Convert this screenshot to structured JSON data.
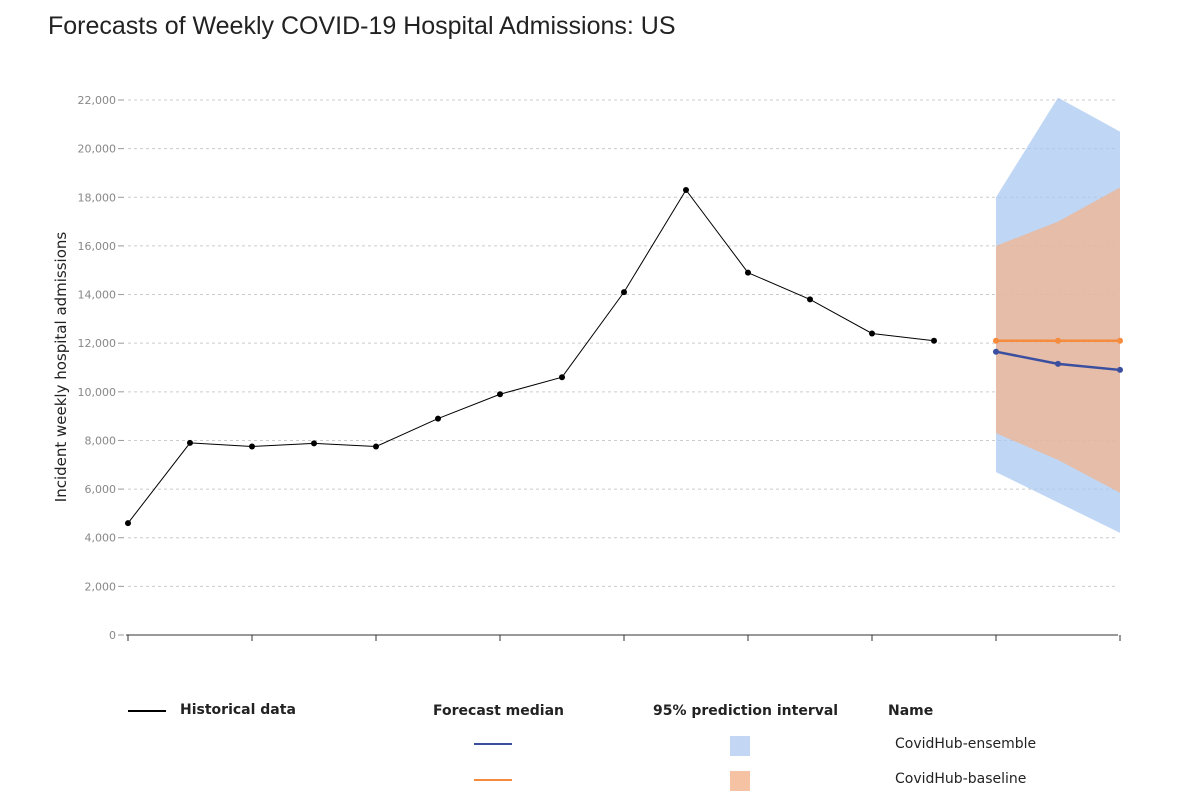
{
  "chart_data": {
    "type": "line",
    "title": "Forecasts of Weekly COVID-19 Hospital Admissions: US",
    "ylabel": "Incident weekly hospital admissions",
    "xlabel": "",
    "ylim": [
      0,
      22000
    ],
    "yticks": [
      0,
      2000,
      4000,
      6000,
      8000,
      10000,
      12000,
      14000,
      16000,
      18000,
      20000,
      22000
    ],
    "grid": true,
    "historical": {
      "name": "Historical data",
      "color": "#000000",
      "values": [
        4600,
        7900,
        7750,
        7880,
        7750,
        8900,
        9900,
        10600,
        14100,
        18300,
        14900,
        13800,
        12400,
        12100
      ]
    },
    "forecasts": [
      {
        "name": "CovidHub-ensemble",
        "median_color": "#3b4fa0",
        "interval_color": "#a9c8f2",
        "median": [
          11650,
          11150,
          10900
        ],
        "lower95": [
          6700,
          5450,
          4200
        ],
        "upper95": [
          18000,
          22100,
          20700
        ]
      },
      {
        "name": "CovidHub-baseline",
        "median_color": "#f58b3c",
        "interval_color": "#f2b48e",
        "median": [
          12100,
          12100,
          12100
        ],
        "lower95": [
          8300,
          7200,
          5850
        ],
        "upper95": [
          16000,
          17000,
          18400
        ]
      }
    ]
  },
  "legend": {
    "historical": "Historical data",
    "median": "Forecast median",
    "interval": "95% prediction interval",
    "name": "Name",
    "models": [
      "CovidHub-ensemble",
      "CovidHub-baseline"
    ]
  }
}
